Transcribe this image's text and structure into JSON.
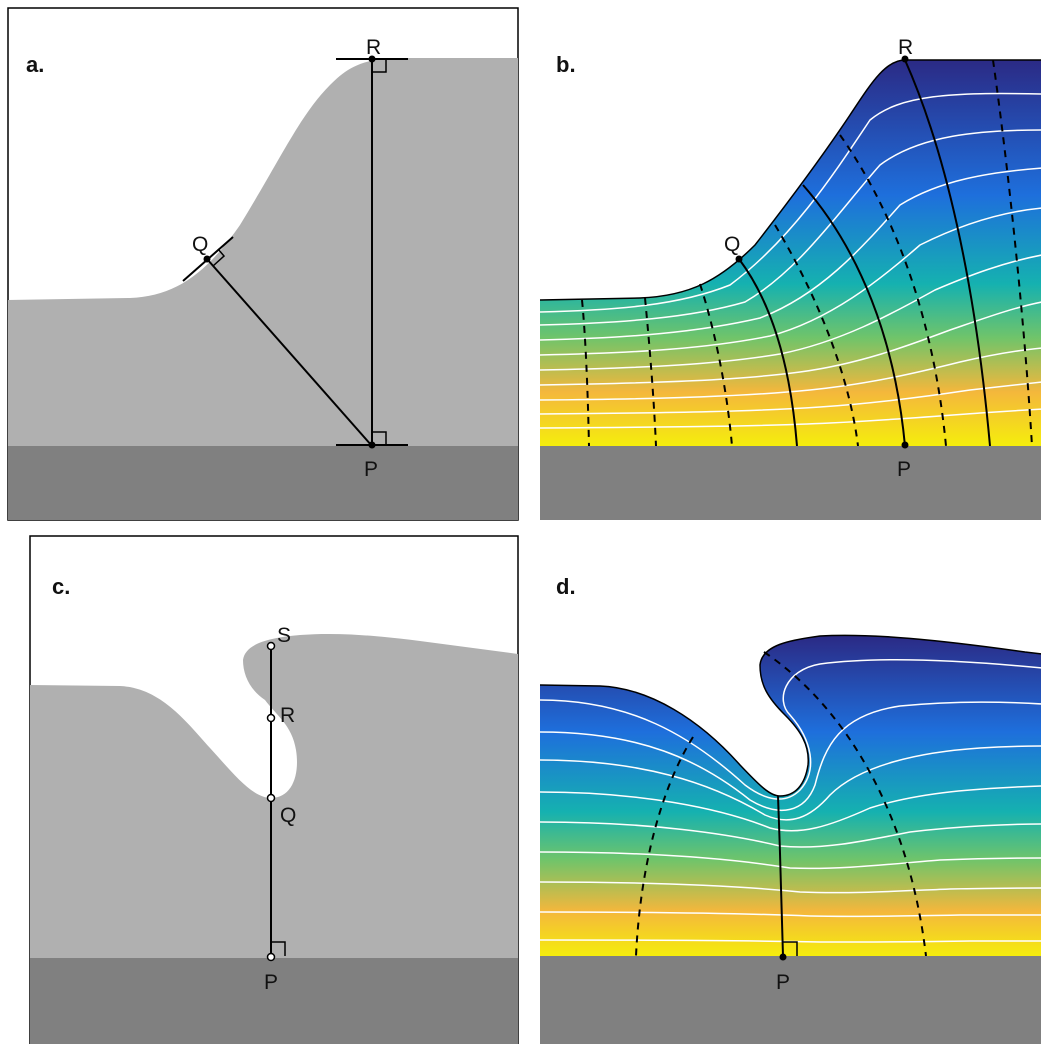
{
  "panels": {
    "a": {
      "letter": "a.",
      "points": {
        "P": "P",
        "Q": "Q",
        "R": "R"
      }
    },
    "b": {
      "letter": "b.",
      "points": {
        "P": "P",
        "Q": "Q",
        "R": "R"
      }
    },
    "c": {
      "letter": "c.",
      "points": {
        "P": "P",
        "Q": "Q",
        "R": "R",
        "S": "S"
      }
    },
    "d": {
      "letter": "d.",
      "points": {
        "P": "P"
      }
    }
  },
  "colors": {
    "bedrock": "#808080",
    "ice_gray": "#b0b0b0",
    "colormap": [
      "#2b2a85",
      "#1e6fdc",
      "#15b1b0",
      "#70c46a",
      "#f4b73c",
      "#f5ed0c"
    ]
  }
}
